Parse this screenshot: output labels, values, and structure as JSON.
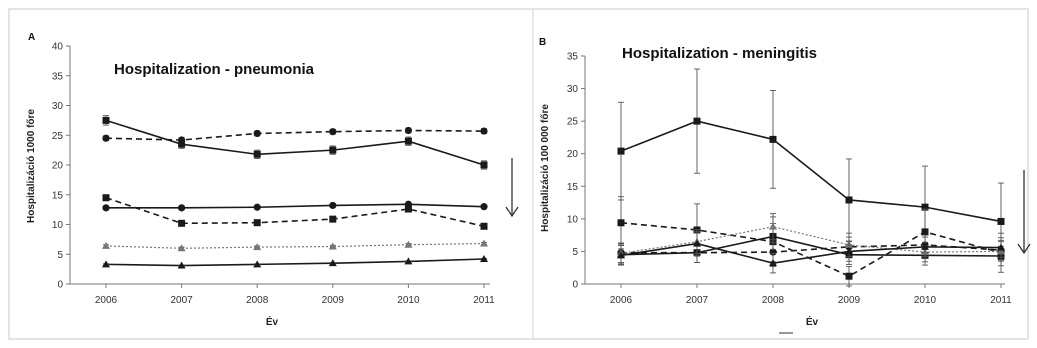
{
  "chart_data": [
    {
      "panel_label": "A",
      "type": "line",
      "title": "Hospitalization - pneumonia",
      "xlabel": "Év",
      "ylabel": "Hospitalizáció 1000 főre",
      "x": [
        "2006",
        "2007",
        "2008",
        "2009",
        "2010",
        "2011"
      ],
      "yticks": [
        "0",
        "5",
        "10",
        "15",
        "20",
        "25",
        "30",
        "35",
        "40"
      ],
      "ylim": [
        0,
        40
      ],
      "grid": false,
      "trend_arrow": "down",
      "series": [
        {
          "marker": "square",
          "line": "solid",
          "values": [
            27.5,
            23.5,
            21.8,
            22.5,
            24.0,
            20.0
          ],
          "errors": [
            0.8,
            0.7,
            0.7,
            0.7,
            0.7,
            0.7
          ]
        },
        {
          "marker": "circle",
          "line": "dashed",
          "values": [
            24.5,
            24.2,
            25.3,
            25.6,
            25.8,
            25.7
          ],
          "errors": [
            0.4,
            0.4,
            0.4,
            0.4,
            0.4,
            0.4
          ]
        },
        {
          "marker": "square",
          "line": "dashed",
          "values": [
            14.5,
            10.2,
            10.3,
            10.9,
            12.6,
            9.7
          ],
          "errors": [
            0.3,
            0.3,
            0.3,
            0.3,
            0.3,
            0.3
          ]
        },
        {
          "marker": "circle",
          "line": "solid",
          "values": [
            12.8,
            12.8,
            12.9,
            13.2,
            13.4,
            13.0
          ],
          "errors": [
            0.2,
            0.2,
            0.2,
            0.2,
            0.2,
            0.2
          ]
        },
        {
          "marker": "triangle",
          "line": "dotted",
          "values": [
            6.4,
            6.0,
            6.2,
            6.3,
            6.6,
            6.8
          ],
          "errors": [
            0.2,
            0.2,
            0.2,
            0.2,
            0.2,
            0.2
          ]
        },
        {
          "marker": "triangle",
          "line": "solid",
          "values": [
            3.3,
            3.1,
            3.3,
            3.5,
            3.8,
            4.2
          ],
          "errors": [
            0.1,
            0.1,
            0.1,
            0.1,
            0.1,
            0.1
          ]
        }
      ]
    },
    {
      "panel_label": "B",
      "type": "line",
      "title": "Hospitalization - meningitis",
      "xlabel": "Év",
      "ylabel": "Hospitalizáció 100 000 főre",
      "x": [
        "2006",
        "2007",
        "2008",
        "2009",
        "2010",
        "2011"
      ],
      "yticks": [
        "0",
        "5",
        "10",
        "15",
        "20",
        "25",
        "30",
        "35"
      ],
      "ylim": [
        0,
        35
      ],
      "grid": false,
      "trend_arrow": "down",
      "series": [
        {
          "marker": "square",
          "line": "solid",
          "values": [
            20.4,
            25.0,
            22.2,
            12.9,
            11.8,
            9.6
          ],
          "errors": [
            7.5,
            8.0,
            7.5,
            6.3,
            6.3,
            5.9
          ]
        },
        {
          "marker": "square",
          "line": "dashed",
          "values": [
            9.4,
            8.3,
            6.5,
            1.2,
            8.0,
            4.8
          ],
          "errors": [
            4.0,
            4.0,
            3.8,
            1.5,
            3.5,
            3.0
          ]
        },
        {
          "marker": "circle",
          "line": "dashed",
          "values": [
            4.8,
            4.8,
            4.9,
            5.7,
            6.0,
            5.2
          ],
          "errors": [
            1.5,
            1.5,
            1.5,
            1.5,
            1.5,
            1.5
          ]
        },
        {
          "marker": "square",
          "line": "solid",
          "values": [
            4.5,
            4.8,
            7.3,
            4.5,
            4.4,
            4.3
          ],
          "errors": [
            1.5,
            1.5,
            2.0,
            1.5,
            1.5,
            1.5
          ]
        },
        {
          "marker": "triangle",
          "line": "dotted",
          "values": [
            4.7,
            6.5,
            8.8,
            6.0,
            4.9,
            5.0
          ],
          "errors": [
            1.5,
            1.8,
            2.0,
            1.8,
            1.5,
            1.5
          ]
        },
        {
          "marker": "triangle",
          "line": "solid",
          "values": [
            4.4,
            6.2,
            3.2,
            5.0,
            5.7,
            5.6
          ],
          "errors": [
            1.5,
            1.8,
            1.5,
            1.5,
            1.5,
            1.5
          ]
        }
      ]
    }
  ]
}
